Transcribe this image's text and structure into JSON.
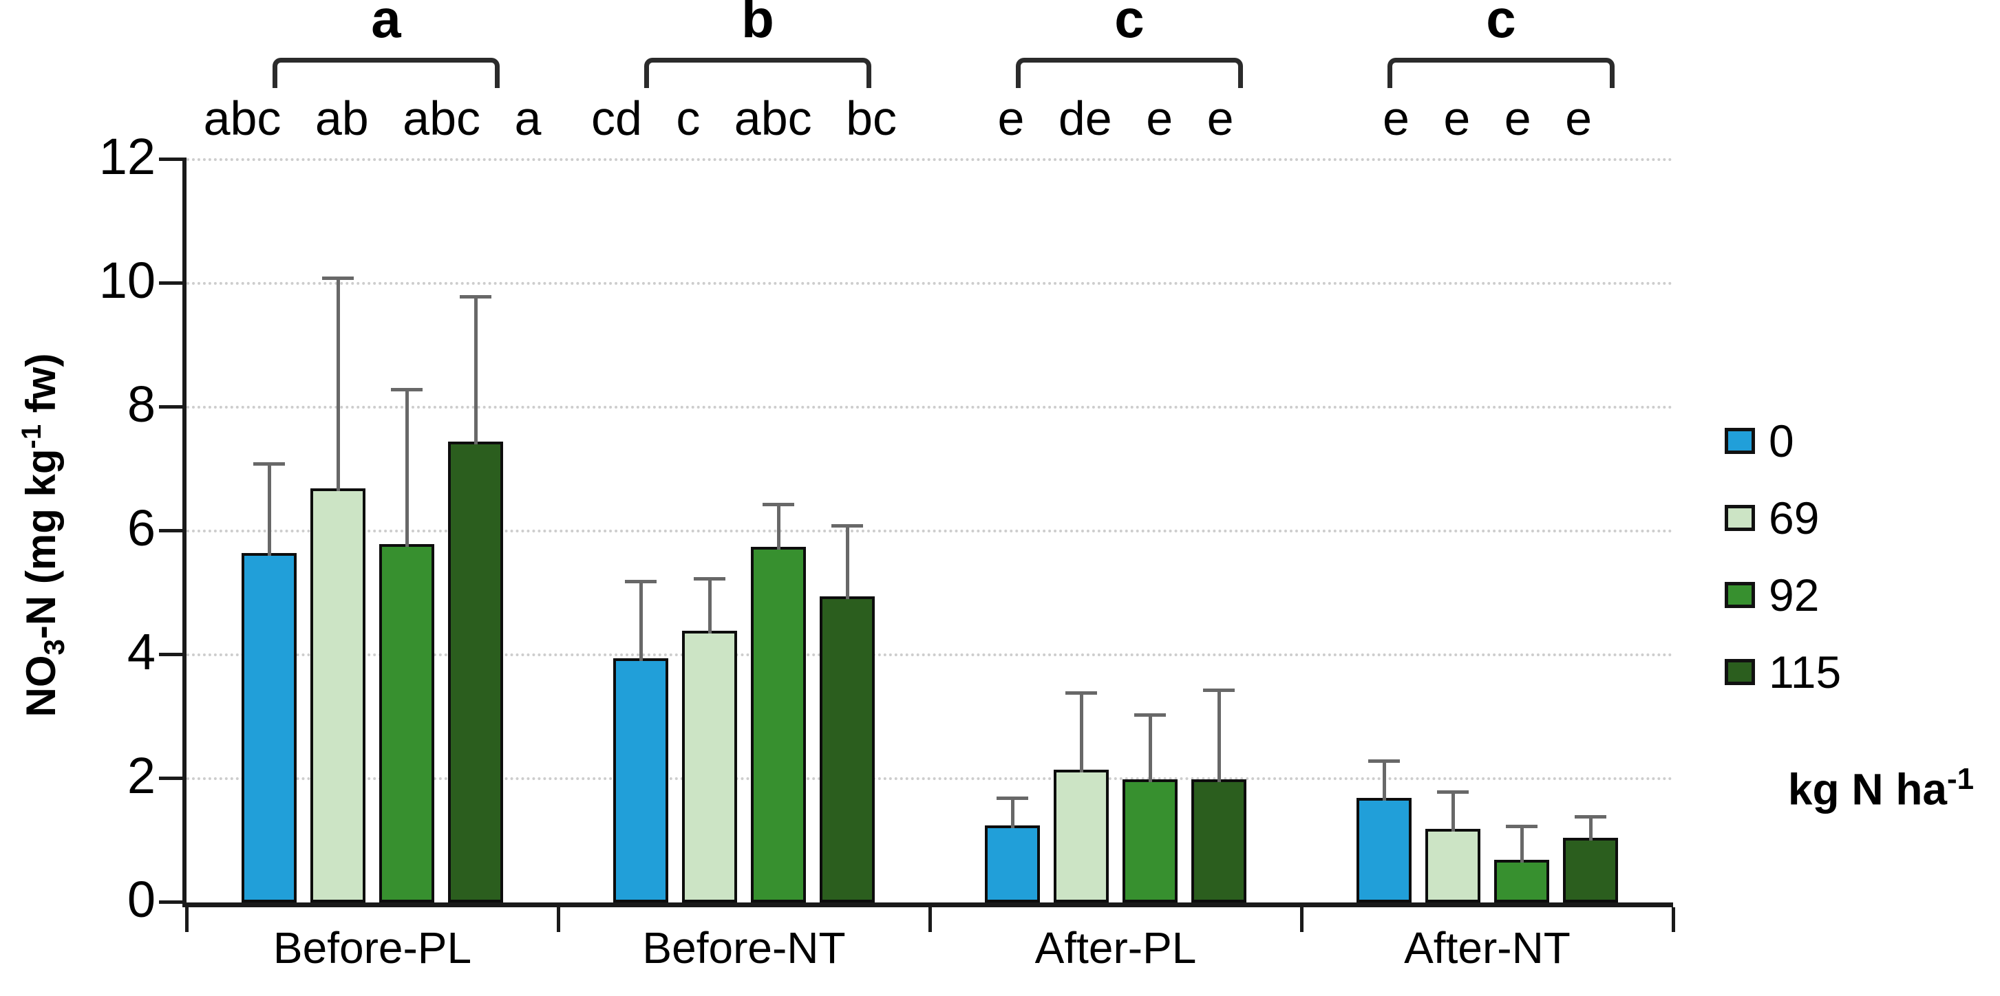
{
  "figure": {
    "background": "#ffffff"
  },
  "y_axis": {
    "title_parts": {
      "pre": "NO",
      "sub": "3",
      "mid": "-N (mg kg",
      "sup": "-1",
      "post": " fw)"
    },
    "ticks": [
      "0",
      "2",
      "4",
      "6",
      "8",
      "10",
      "12"
    ],
    "range": [
      0,
      12
    ]
  },
  "x_axis": {
    "categories": [
      "Before-PL",
      "Before-NT",
      "After-PL",
      "After-NT"
    ]
  },
  "legend": {
    "items": [
      {
        "label": "0",
        "color": "#219FD9"
      },
      {
        "label": "69",
        "color": "#CCE4C5"
      },
      {
        "label": "92",
        "color": "#37902F"
      },
      {
        "label": "115",
        "color": "#2B5E1E"
      }
    ],
    "title_parts": {
      "text": "kg N ha",
      "sup": "-1"
    }
  },
  "chart_data": {
    "type": "bar",
    "title": "",
    "xlabel": "",
    "ylabel": "NO3-N (mg kg-1 fw)",
    "ylim": [
      0,
      12
    ],
    "ytick_step": 2,
    "grid": "horizontal dotted gridlines every 2 units",
    "legend_position": "right",
    "legend_title": "kg N ha-1",
    "categories": [
      "Before-PL",
      "Before-NT",
      "After-PL",
      "After-NT"
    ],
    "series": [
      {
        "name": "0",
        "color": "#219FD9",
        "values": [
          5.6,
          3.9,
          1.2,
          1.65
        ],
        "error_up": [
          1.5,
          1.3,
          0.5,
          0.65
        ]
      },
      {
        "name": "69",
        "color": "#CCE4C5",
        "values": [
          6.65,
          4.35,
          2.1,
          1.15
        ],
        "error_up": [
          3.45,
          0.9,
          1.3,
          0.65
        ]
      },
      {
        "name": "92",
        "color": "#37902F",
        "values": [
          5.75,
          5.7,
          1.95,
          0.65
        ],
        "error_up": [
          2.55,
          0.75,
          1.1,
          0.6
        ]
      },
      {
        "name": "115",
        "color": "#2B5E1E",
        "values": [
          7.4,
          4.9,
          1.95,
          1.0
        ],
        "error_up": [
          2.4,
          1.2,
          1.5,
          0.4
        ]
      }
    ],
    "bar_letters": [
      [
        "abc",
        "ab",
        "abc",
        "a"
      ],
      [
        "cd",
        "c",
        "abc",
        "bc"
      ],
      [
        "e",
        "de",
        "e",
        "e"
      ],
      [
        "e",
        "e",
        "e",
        "e"
      ]
    ],
    "group_letters": [
      "a",
      "b",
      "c",
      "c"
    ],
    "error_bars": "upper only, gray, with caps"
  },
  "styles": {
    "error_bar_color": "#686868",
    "gridline_color": "#cdcdcd",
    "axis_color": "#1a1a1a",
    "bar_border_color": "#0d0d0d",
    "text_color": "#000000"
  }
}
